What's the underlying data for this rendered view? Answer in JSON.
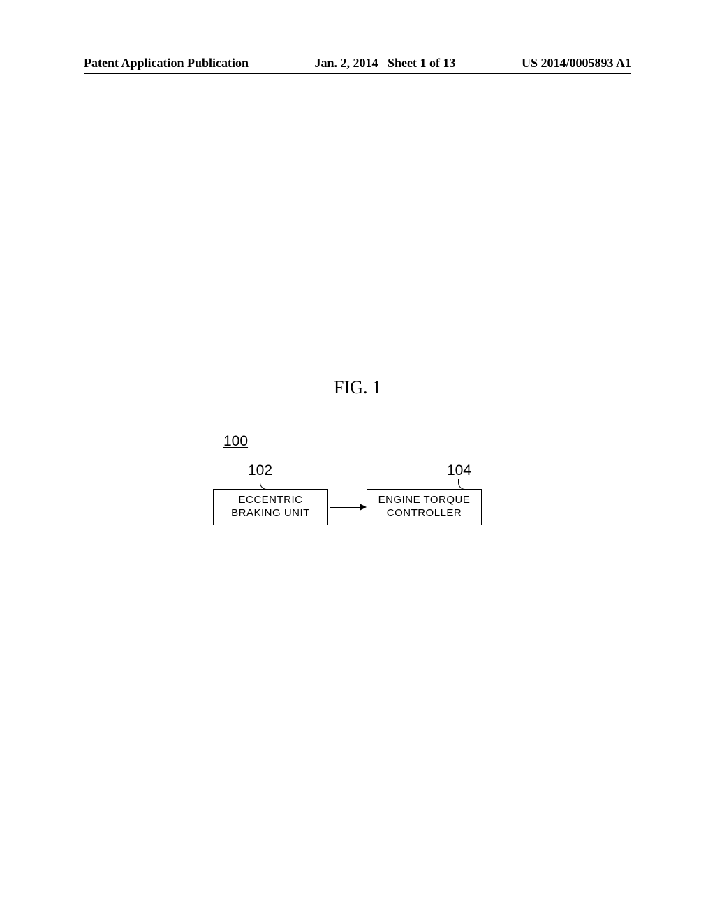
{
  "header": {
    "left": "Patent Application Publication",
    "center_date": "Jan. 2, 2014",
    "center_sheet": "Sheet 1 of 13",
    "right": "US 2014/0005893 A1"
  },
  "figure": {
    "label": "FIG. 1",
    "system_ref": "100",
    "left_block": {
      "ref": "102",
      "line1": "ECCENTRIC",
      "line2": "BRAKING UNIT"
    },
    "right_block": {
      "ref": "104",
      "line1": "ENGINE TORQUE",
      "line2": "CONTROLLER"
    },
    "styling": {
      "box_border_color": "#000000",
      "box_border_width": 1.5,
      "background_color": "#ffffff",
      "box_font_family": "Arial",
      "box_font_size": 15,
      "ref_font_size": 21,
      "figure_label_font_size": 26,
      "header_font_size": 18,
      "arrow_direction": "right"
    }
  }
}
